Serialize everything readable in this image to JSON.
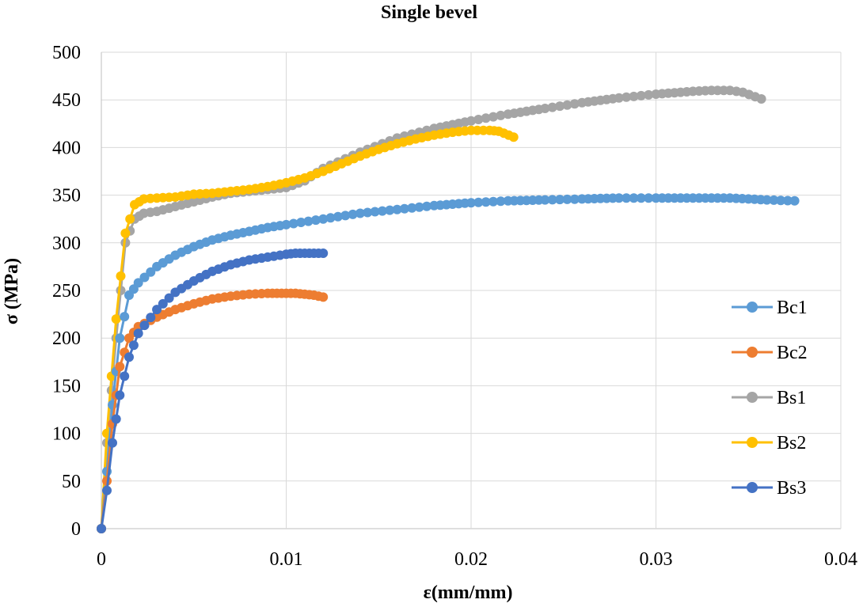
{
  "chart_data": {
    "type": "line",
    "title": "Single bevel",
    "xlabel": "ε(mm/mm)",
    "ylabel": "σ (MPa)",
    "xlim": [
      0,
      0.04
    ],
    "ylim": [
      0,
      500
    ],
    "x_ticks": [
      "0",
      "0.01",
      "0.02",
      "0.03",
      "0.04"
    ],
    "y_ticks": [
      "0",
      "50",
      "100",
      "150",
      "200",
      "250",
      "300",
      "350",
      "400",
      "450",
      "500"
    ],
    "grid": true,
    "legend_position": "right",
    "series": [
      {
        "name": "Bc1",
        "color": "#5b9bd5",
        "points": [
          [
            0,
            0
          ],
          [
            0.0003,
            60
          ],
          [
            0.0006,
            130
          ],
          [
            0.001,
            200
          ],
          [
            0.0015,
            245
          ],
          [
            0.002,
            258
          ],
          [
            0.003,
            275
          ],
          [
            0.004,
            287
          ],
          [
            0.005,
            296
          ],
          [
            0.006,
            303
          ],
          [
            0.007,
            308
          ],
          [
            0.008,
            312
          ],
          [
            0.009,
            316
          ],
          [
            0.01,
            319
          ],
          [
            0.012,
            325
          ],
          [
            0.014,
            331
          ],
          [
            0.016,
            335
          ],
          [
            0.018,
            339
          ],
          [
            0.02,
            342
          ],
          [
            0.022,
            344
          ],
          [
            0.024,
            345
          ],
          [
            0.026,
            346
          ],
          [
            0.028,
            347
          ],
          [
            0.03,
            347
          ],
          [
            0.032,
            347
          ],
          [
            0.034,
            347
          ],
          [
            0.035,
            346
          ],
          [
            0.036,
            345
          ],
          [
            0.0375,
            344
          ]
        ]
      },
      {
        "name": "Bc2",
        "color": "#ed7d31",
        "points": [
          [
            0,
            0
          ],
          [
            0.0003,
            50
          ],
          [
            0.0006,
            110
          ],
          [
            0.001,
            170
          ],
          [
            0.0015,
            200
          ],
          [
            0.002,
            212
          ],
          [
            0.003,
            222
          ],
          [
            0.004,
            230
          ],
          [
            0.005,
            236
          ],
          [
            0.006,
            241
          ],
          [
            0.007,
            244
          ],
          [
            0.008,
            246
          ],
          [
            0.009,
            247
          ],
          [
            0.0095,
            247
          ],
          [
            0.01,
            247
          ],
          [
            0.0105,
            247
          ],
          [
            0.011,
            246
          ],
          [
            0.0115,
            245
          ],
          [
            0.012,
            243
          ]
        ]
      },
      {
        "name": "Bs1",
        "color": "#a5a5a5",
        "points": [
          [
            0,
            0
          ],
          [
            0.0003,
            90
          ],
          [
            0.0008,
            200
          ],
          [
            0.0013,
            300
          ],
          [
            0.0018,
            325
          ],
          [
            0.0023,
            331
          ],
          [
            0.003,
            333
          ],
          [
            0.004,
            338
          ],
          [
            0.005,
            343
          ],
          [
            0.006,
            348
          ],
          [
            0.007,
            352
          ],
          [
            0.008,
            354
          ],
          [
            0.009,
            356
          ],
          [
            0.01,
            358
          ],
          [
            0.011,
            365
          ],
          [
            0.012,
            378
          ],
          [
            0.014,
            395
          ],
          [
            0.016,
            410
          ],
          [
            0.018,
            420
          ],
          [
            0.02,
            428
          ],
          [
            0.022,
            435
          ],
          [
            0.024,
            441
          ],
          [
            0.026,
            447
          ],
          [
            0.028,
            452
          ],
          [
            0.03,
            456
          ],
          [
            0.032,
            459
          ],
          [
            0.033,
            460
          ],
          [
            0.034,
            460
          ],
          [
            0.0347,
            458
          ],
          [
            0.0357,
            451
          ]
        ]
      },
      {
        "name": "Bs2",
        "color": "#ffc000",
        "points": [
          [
            0,
            0
          ],
          [
            0.0003,
            100
          ],
          [
            0.0008,
            220
          ],
          [
            0.0013,
            310
          ],
          [
            0.0018,
            340
          ],
          [
            0.0023,
            346
          ],
          [
            0.003,
            347
          ],
          [
            0.004,
            348
          ],
          [
            0.005,
            351
          ],
          [
            0.006,
            352
          ],
          [
            0.007,
            354
          ],
          [
            0.008,
            356
          ],
          [
            0.009,
            359
          ],
          [
            0.01,
            363
          ],
          [
            0.011,
            368
          ],
          [
            0.012,
            375
          ],
          [
            0.013,
            383
          ],
          [
            0.014,
            391
          ],
          [
            0.015,
            398
          ],
          [
            0.016,
            404
          ],
          [
            0.017,
            409
          ],
          [
            0.018,
            413
          ],
          [
            0.019,
            416
          ],
          [
            0.02,
            418
          ],
          [
            0.021,
            418
          ],
          [
            0.0215,
            417
          ],
          [
            0.0223,
            411
          ]
        ]
      },
      {
        "name": "Bs3",
        "color": "#4472c4",
        "points": [
          [
            0,
            0
          ],
          [
            0.0003,
            40
          ],
          [
            0.0006,
            90
          ],
          [
            0.001,
            140
          ],
          [
            0.0015,
            180
          ],
          [
            0.002,
            205
          ],
          [
            0.003,
            230
          ],
          [
            0.004,
            248
          ],
          [
            0.005,
            260
          ],
          [
            0.006,
            270
          ],
          [
            0.007,
            277
          ],
          [
            0.008,
            282
          ],
          [
            0.009,
            285
          ],
          [
            0.01,
            288
          ],
          [
            0.0105,
            289
          ],
          [
            0.011,
            289
          ],
          [
            0.0115,
            289
          ],
          [
            0.012,
            289
          ]
        ]
      }
    ]
  }
}
